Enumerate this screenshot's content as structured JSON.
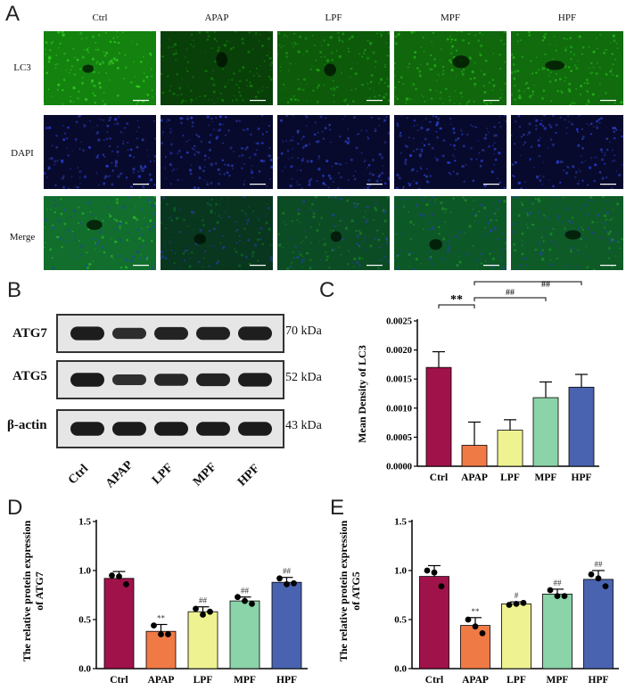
{
  "panels": {
    "a": "A",
    "b": "B",
    "c": "C",
    "d": "D",
    "e": "E"
  },
  "panel_a": {
    "columns": [
      "Ctrl",
      "APAP",
      "LPF",
      "MPF",
      "HPF"
    ],
    "rows": [
      "LC3",
      "DAPI",
      "Merge"
    ]
  },
  "panel_b": {
    "proteins": [
      {
        "name": "ATG7",
        "kda": "70 kDa",
        "intensity": [
          0.92,
          0.55,
          0.78,
          0.82,
          0.9
        ]
      },
      {
        "name": "ATG5",
        "kda": "52 kDa",
        "intensity": [
          0.95,
          0.5,
          0.7,
          0.78,
          0.92
        ]
      },
      {
        "name": "β-actin",
        "kda": "43 kDa",
        "intensity": [
          0.95,
          0.95,
          0.95,
          0.95,
          0.95
        ]
      }
    ],
    "lanes": [
      "Ctrl",
      "APAP",
      "LPF",
      "MPF",
      "HPF"
    ]
  },
  "colors": {
    "Ctrl": "#a0124a",
    "APAP": "#f07a45",
    "LPF": "#eef291",
    "MPF": "#8bd3a8",
    "HPF": "#4a63b0"
  },
  "chart_data": [
    {
      "id": "C",
      "type": "bar",
      "categories": [
        "Ctrl",
        "APAP",
        "LPF",
        "MPF",
        "HPF"
      ],
      "values": [
        0.0017,
        0.00036,
        0.00062,
        0.00118,
        0.00136
      ],
      "errors": [
        0.00027,
        0.0004,
        0.00018,
        0.00027,
        0.00022
      ],
      "ylabel": "Mean Density of LC3",
      "ylim": [
        0,
        0.0025
      ],
      "yticks": [
        "0.0000",
        "0.0005",
        "0.0010",
        "0.0015",
        "0.0020",
        "0.0025"
      ],
      "yticks_values": [
        0,
        0.0005,
        0.001,
        0.0015,
        0.002,
        0.0025
      ],
      "annotations": [
        {
          "text": "**",
          "from": "Ctrl",
          "to": "APAP"
        },
        {
          "text": "##",
          "from": "APAP",
          "to": "MPF"
        },
        {
          "text": "##",
          "from": "APAP",
          "to": "HPF"
        }
      ]
    },
    {
      "id": "D",
      "type": "bar",
      "categories": [
        "Ctrl",
        "APAP",
        "LPF",
        "MPF",
        "HPF"
      ],
      "values": [
        0.92,
        0.38,
        0.58,
        0.69,
        0.88
      ],
      "errors": [
        0.07,
        0.07,
        0.05,
        0.04,
        0.05
      ],
      "points": [
        [
          0.95,
          0.94,
          0.86
        ],
        [
          0.44,
          0.35,
          0.35
        ],
        [
          0.61,
          0.55,
          0.58
        ],
        [
          0.73,
          0.69,
          0.66
        ],
        [
          0.92,
          0.86,
          0.87
        ]
      ],
      "sig": [
        "",
        "**",
        "##",
        "##",
        "##"
      ],
      "ylabel": "The relative protein expression of ATG7",
      "ylim": [
        0,
        1.5
      ],
      "yticks": [
        "0.0",
        "0.5",
        "1.0",
        "1.5"
      ],
      "yticks_values": [
        0,
        0.5,
        1.0,
        1.5
      ]
    },
    {
      "id": "E",
      "type": "bar",
      "categories": [
        "Ctrl",
        "APAP",
        "LPF",
        "MPF",
        "HPF"
      ],
      "values": [
        0.94,
        0.44,
        0.66,
        0.76,
        0.91
      ],
      "errors": [
        0.11,
        0.08,
        0.02,
        0.05,
        0.09
      ],
      "points": [
        [
          1.0,
          0.98,
          0.84
        ],
        [
          0.5,
          0.43,
          0.36
        ],
        [
          0.65,
          0.66,
          0.67
        ],
        [
          0.8,
          0.74,
          0.74
        ],
        [
          0.96,
          0.92,
          0.84
        ]
      ],
      "sig": [
        "",
        "**",
        "#",
        "##",
        "##"
      ],
      "ylabel": "The relative protein expression of ATG5",
      "ylim": [
        0,
        1.5
      ],
      "yticks": [
        "0.0",
        "0.5",
        "1.0",
        "1.5"
      ],
      "yticks_values": [
        0,
        0.5,
        1.0,
        1.5
      ]
    }
  ]
}
